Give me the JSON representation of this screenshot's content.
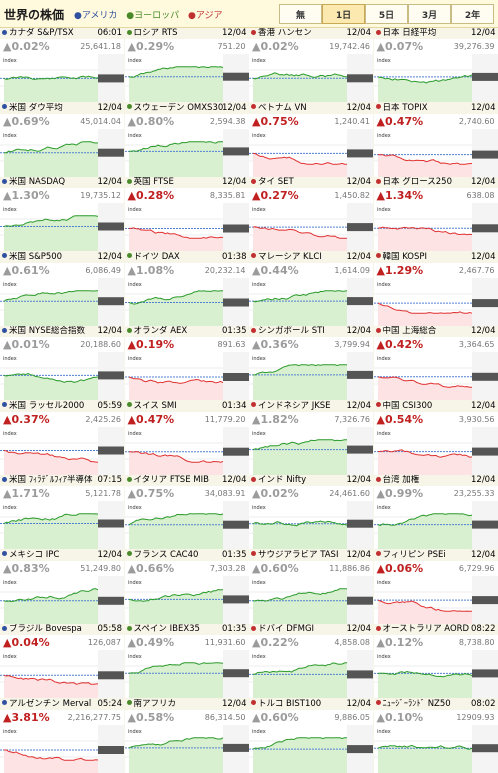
{
  "header": {
    "title": "世界の株価",
    "regions": [
      {
        "label": "●アメリカ",
        "color": "#3050a0"
      },
      {
        "label": "●ヨーロッパ",
        "color": "#4a8a2a"
      },
      {
        "label": "●アジア",
        "color": "#c03030"
      }
    ],
    "tabs": [
      "無",
      "1日",
      "5日",
      "3月",
      "2年"
    ],
    "active_tab": 1
  },
  "colors": {
    "up": "#2a9a2a",
    "down": "#e03030",
    "region_america": "#3050a0",
    "region_europe": "#4a8a2a",
    "region_asia": "#c03030"
  },
  "markets": [
    {
      "name": "カナダ S&P/TSX",
      "time": "06:01",
      "region": "america",
      "pct": "▲0.02%",
      "val": "25,641.18",
      "trend": "flat"
    },
    {
      "name": "ロシア RTS",
      "time": "12/04",
      "region": "europe",
      "pct": "▲0.29%",
      "val": "751.20",
      "trend": "up"
    },
    {
      "name": "香港 ハンセン",
      "time": "12/04",
      "region": "asia",
      "pct": "▲0.02%",
      "val": "19,742.46",
      "trend": "flat"
    },
    {
      "name": "日本 日経平均",
      "time": "12/04",
      "region": "asia",
      "pct": "▲0.07%",
      "val": "39,276.39",
      "trend": "flat"
    },
    {
      "name": "米国 ダウ平均",
      "time": "12/04",
      "region": "america",
      "pct": "▲0.69%",
      "val": "45,014.04",
      "trend": "up"
    },
    {
      "name": "スウェーデン OMXS30",
      "time": "12/04",
      "region": "europe",
      "pct": "▲0.80%",
      "val": "2,594.38",
      "trend": "up"
    },
    {
      "name": "ベトナム VN",
      "time": "12/04",
      "region": "asia",
      "pct": "▲0.75%",
      "val": "1,240.41",
      "trend": "down"
    },
    {
      "name": "日本 TOPIX",
      "time": "12/04",
      "region": "asia",
      "pct": "▲0.47%",
      "val": "2,740.60",
      "trend": "down"
    },
    {
      "name": "米国 NASDAQ",
      "time": "12/04",
      "region": "america",
      "pct": "▲1.30%",
      "val": "19,735.12",
      "trend": "up"
    },
    {
      "name": "英国 FTSE",
      "time": "12/04",
      "region": "europe",
      "pct": "▲0.28%",
      "val": "8,335.81",
      "trend": "down"
    },
    {
      "name": "タイ SET",
      "time": "12/04",
      "region": "asia",
      "pct": "▲0.27%",
      "val": "1,450.82",
      "trend": "down"
    },
    {
      "name": "日本 グロース250",
      "time": "12/04",
      "region": "asia",
      "pct": "▲1.34%",
      "val": "638.08",
      "trend": "down"
    },
    {
      "name": "米国 S&P500",
      "time": "12/04",
      "region": "america",
      "pct": "▲0.61%",
      "val": "6,086.49",
      "trend": "up"
    },
    {
      "name": "ドイツ DAX",
      "time": "01:38",
      "region": "europe",
      "pct": "▲1.08%",
      "val": "20,232.14",
      "trend": "up"
    },
    {
      "name": "マレーシア KLCI",
      "time": "12/04",
      "region": "asia",
      "pct": "▲0.44%",
      "val": "1,614.09",
      "trend": "up"
    },
    {
      "name": "韓国 KOSPI",
      "time": "12/04",
      "region": "asia",
      "pct": "▲1.29%",
      "val": "2,467.76",
      "trend": "down"
    },
    {
      "name": "米国 NYSE総合指数",
      "time": "12/04",
      "region": "america",
      "pct": "▲0.01%",
      "val": "20,188.60",
      "trend": "flat"
    },
    {
      "name": "オランダ AEX",
      "time": "01:35",
      "region": "europe",
      "pct": "▲0.19%",
      "val": "891.63",
      "trend": "down"
    },
    {
      "name": "シンガポール STI",
      "time": "12/04",
      "region": "asia",
      "pct": "▲0.36%",
      "val": "3,799.94",
      "trend": "up"
    },
    {
      "name": "中国 上海総合",
      "time": "12/04",
      "region": "asia",
      "pct": "▲0.42%",
      "val": "3,364.65",
      "trend": "down"
    },
    {
      "name": "米国 ラッセル2000",
      "time": "05:59",
      "region": "america",
      "pct": "▲0.37%",
      "val": "2,425.26",
      "trend": "down"
    },
    {
      "name": "スイス SMI",
      "time": "01:34",
      "region": "europe",
      "pct": "▲0.47%",
      "val": "11,779.20",
      "trend": "down"
    },
    {
      "name": "インドネシア JKSE",
      "time": "12/04",
      "region": "asia",
      "pct": "▲1.82%",
      "val": "7,326.76",
      "trend": "up"
    },
    {
      "name": "中国 CSI300",
      "time": "12/04",
      "region": "asia",
      "pct": "▲0.54%",
      "val": "3,930.56",
      "trend": "down"
    },
    {
      "name": "米国 ﾌｨﾗﾃﾞﾙﾌｨｱ半導体",
      "time": "07:15",
      "region": "america",
      "pct": "▲1.71%",
      "val": "5,121.78",
      "trend": "up"
    },
    {
      "name": "イタリア FTSE MIB",
      "time": "12/04",
      "region": "europe",
      "pct": "▲0.75%",
      "val": "34,083.91",
      "trend": "up"
    },
    {
      "name": "インド Nifty",
      "time": "12/04",
      "region": "asia",
      "pct": "▲0.02%",
      "val": "24,461.60",
      "trend": "flat"
    },
    {
      "name": "台湾 加権",
      "time": "12/04",
      "region": "asia",
      "pct": "▲0.99%",
      "val": "23,255.33",
      "trend": "up"
    },
    {
      "name": "メキシコ IPC",
      "time": "12/04",
      "region": "america",
      "pct": "▲0.83%",
      "val": "51,249.80",
      "trend": "up"
    },
    {
      "name": "フランス CAC40",
      "time": "01:35",
      "region": "europe",
      "pct": "▲0.66%",
      "val": "7,303.28",
      "trend": "up"
    },
    {
      "name": "サウジアラビア TASI",
      "time": "12/04",
      "region": "asia",
      "pct": "▲0.60%",
      "val": "11,886.86",
      "trend": "up"
    },
    {
      "name": "フィリピン PSEi",
      "time": "12/04",
      "region": "asia",
      "pct": "▲0.06%",
      "val": "6,729.96",
      "trend": "down"
    },
    {
      "name": "ブラジル Bovespa",
      "time": "05:58",
      "region": "america",
      "pct": "▲0.04%",
      "val": "126,087",
      "trend": "down"
    },
    {
      "name": "スペイン IBEX35",
      "time": "01:35",
      "region": "europe",
      "pct": "▲0.49%",
      "val": "11,931.60",
      "trend": "up"
    },
    {
      "name": "ドバイ DFMGI",
      "time": "12/04",
      "region": "asia",
      "pct": "▲0.22%",
      "val": "4,858.08",
      "trend": "up"
    },
    {
      "name": "オーストラリア AORD",
      "time": "08:22",
      "region": "asia",
      "pct": "▲0.12%",
      "val": "8,738.80",
      "trend": "flat"
    },
    {
      "name": "アルゼンチン Merval",
      "time": "05:24",
      "region": "america",
      "pct": "▲3.81%",
      "val": "2,216,277.75",
      "trend": "down"
    },
    {
      "name": "南アフリカ",
      "time": "12/04",
      "region": "europe",
      "pct": "▲0.58%",
      "val": "86,314.50",
      "trend": "up"
    },
    {
      "name": "トルコ BIST100",
      "time": "12/04",
      "region": "asia",
      "pct": "▲0.60%",
      "val": "9,886.05",
      "trend": "up"
    },
    {
      "name": "ﾆｭｰｼﾞｰﾗﾝﾄﾞ NZ50",
      "time": "08:02",
      "region": "asia",
      "pct": "▲0.10%",
      "val": "12909.93",
      "trend": "flat"
    }
  ]
}
